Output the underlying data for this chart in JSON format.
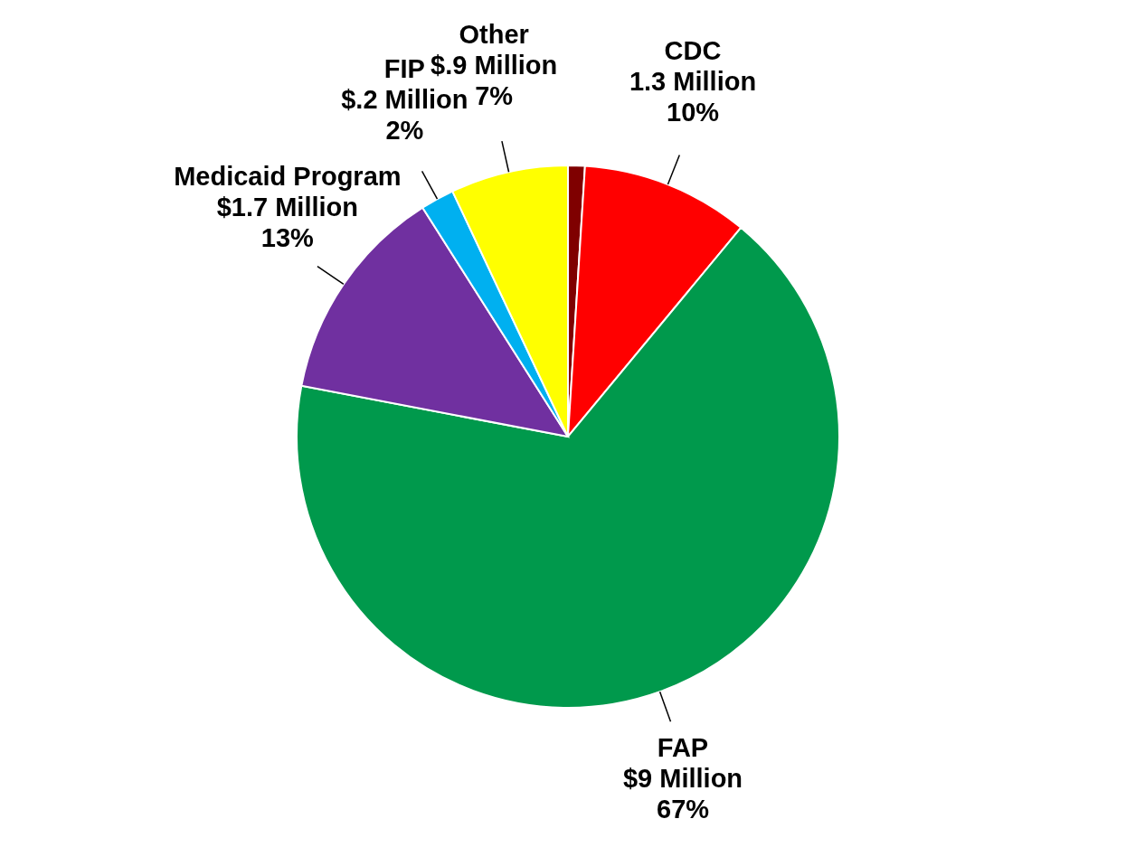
{
  "chart_data": {
    "type": "pie",
    "categories": [
      null,
      "CDC",
      "FAP",
      "Medicaid Program",
      "FIP",
      "Other"
    ],
    "values": [
      1,
      10,
      67,
      13,
      2,
      7
    ],
    "colors": [
      "#7f0000",
      "#ff0000",
      "#00994c",
      "#7030a0",
      "#00b0f0",
      "#ffff00"
    ],
    "value_labels": [
      null,
      "1.3 Million\n10%",
      "$9 Million\n67%",
      "$1.7 Million\n13%",
      "$.2 Million\n2%",
      "$.9 Million\n7%"
    ],
    "legend": false
  }
}
